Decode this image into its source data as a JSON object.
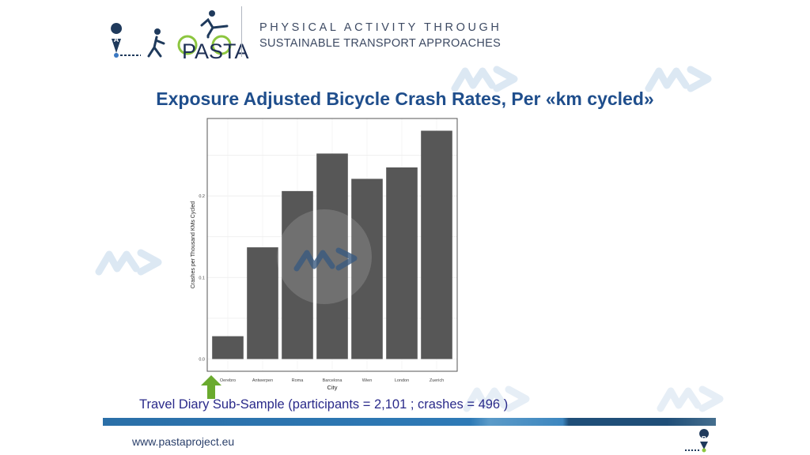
{
  "header": {
    "brand": "PASTA",
    "tagline_line1": "PHYSICAL ACTIVITY THROUGH",
    "tagline_line2": "SUSTAINABLE TRANSPORT APPROACHES",
    "marker_a": "A",
    "marker_b": "B"
  },
  "slide": {
    "title": "Exposure Adjusted Bicycle Crash Rates, Per «km cycled»",
    "subsample": "Travel Diary Sub-Sample (participants = 2,101 ; crashes = 496 )",
    "url": "www.pastaproject.eu"
  },
  "colors": {
    "bar": "#575757",
    "title": "#1f4e8c",
    "arrow": "#6aaa2e"
  },
  "chart_data": {
    "type": "bar",
    "categories": [
      "Oerebro",
      "Antwerpen",
      "Roma",
      "Barcelona",
      "Wien",
      "London",
      "Zuerich"
    ],
    "values": [
      0.028,
      0.137,
      0.206,
      0.252,
      0.221,
      0.235,
      0.28
    ],
    "xlabel": "City",
    "ylabel": "Crashes per Thousand KMs Cycled",
    "yticks": [
      "0.0",
      "0.1",
      "0.2"
    ],
    "ylim": [
      -0.015,
      0.295
    ],
    "grid": true
  }
}
